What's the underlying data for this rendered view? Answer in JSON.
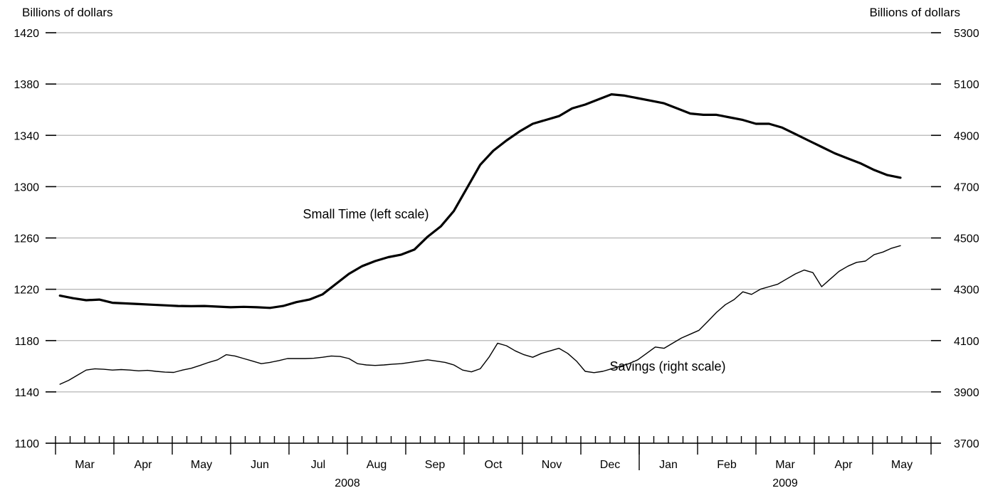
{
  "chart_data": {
    "type": "line",
    "left_axis": {
      "label": "Billions of dollars",
      "ylim": [
        1100,
        1420
      ],
      "ticks": [
        1100,
        1140,
        1180,
        1220,
        1260,
        1300,
        1340,
        1380,
        1420
      ]
    },
    "right_axis": {
      "label": "Billions of dollars",
      "ylim": [
        3700,
        5300
      ],
      "ticks": [
        3700,
        3900,
        4100,
        4300,
        4500,
        4700,
        4900,
        5100,
        5300
      ]
    },
    "grid": true,
    "x_range": [
      0,
      30
    ],
    "months": [
      {
        "label": "Mar",
        "start": 0
      },
      {
        "label": "Apr",
        "start": 2
      },
      {
        "label": "May",
        "start": 4
      },
      {
        "label": "Jun",
        "start": 6
      },
      {
        "label": "Jul",
        "start": 8
      },
      {
        "label": "Aug",
        "start": 10
      },
      {
        "label": "Sep",
        "start": 12
      },
      {
        "label": "Oct",
        "start": 14
      },
      {
        "label": "Nov",
        "start": 16
      },
      {
        "label": "Dec",
        "start": 18
      },
      {
        "label": "Jan",
        "start": 20
      },
      {
        "label": "Feb",
        "start": 22
      },
      {
        "label": "Mar",
        "start": 24
      },
      {
        "label": "Apr",
        "start": 26
      },
      {
        "label": "May",
        "start": 28
      }
    ],
    "years": [
      {
        "label": "2008",
        "center": 10
      },
      {
        "label": "2009",
        "center": 25
      }
    ],
    "year_divider": 20,
    "series": [
      {
        "name": "Small Time (left scale)",
        "axis": "left",
        "stroke_width": 3.2,
        "x": [
          0.15,
          0.6,
          1.05,
          1.5,
          1.95,
          2.4,
          2.85,
          3.3,
          3.75,
          4.2,
          4.65,
          5.1,
          5.55,
          6.0,
          6.45,
          6.9,
          7.35,
          7.8,
          8.25,
          8.7,
          9.15,
          9.6,
          10.05,
          10.5,
          10.95,
          11.4,
          11.85,
          12.3,
          12.75,
          13.2,
          13.65,
          14.1,
          14.55,
          15.0,
          15.45,
          15.9,
          16.35,
          16.8,
          17.25,
          17.7,
          18.15,
          18.6,
          19.05,
          19.5,
          19.95,
          20.4,
          20.85,
          21.3,
          21.75,
          22.2,
          22.65,
          23.1,
          23.55,
          24.0,
          24.45,
          24.9,
          25.35,
          25.8,
          26.25,
          26.7,
          27.15,
          27.6,
          28.05,
          28.5,
          28.95
        ],
        "y": [
          1215,
          1213,
          1211.5,
          1212,
          1209.5,
          1209,
          1208.5,
          1208,
          1207.5,
          1207,
          1206.8,
          1207,
          1206.5,
          1206,
          1206.3,
          1206,
          1205.5,
          1207,
          1210,
          1212,
          1216,
          1224,
          1232,
          1238,
          1242,
          1245,
          1247,
          1251,
          1261,
          1269,
          1281,
          1299,
          1317,
          1328,
          1336,
          1343,
          1349,
          1352,
          1355,
          1361,
          1364,
          1368,
          1372,
          1371,
          1369,
          1367,
          1365,
          1361,
          1357,
          1356,
          1356,
          1354,
          1352,
          1349,
          1349,
          1346,
          1341,
          1336,
          1331,
          1326,
          1322,
          1318,
          1313,
          1309,
          1307
        ]
      },
      {
        "name": "Savings (right scale)",
        "axis": "right",
        "stroke_width": 1.4,
        "x": [
          0.15,
          0.45,
          0.75,
          1.05,
          1.35,
          1.65,
          1.95,
          2.25,
          2.55,
          2.85,
          3.15,
          3.45,
          3.75,
          4.05,
          4.35,
          4.65,
          4.95,
          5.25,
          5.55,
          5.85,
          6.15,
          6.45,
          6.75,
          7.05,
          7.35,
          7.65,
          7.95,
          8.25,
          8.55,
          8.85,
          9.15,
          9.45,
          9.75,
          10.05,
          10.35,
          10.65,
          10.95,
          11.25,
          11.55,
          11.85,
          12.15,
          12.45,
          12.75,
          13.05,
          13.35,
          13.65,
          13.95,
          14.25,
          14.55,
          14.85,
          15.15,
          15.45,
          15.75,
          16.05,
          16.35,
          16.65,
          16.95,
          17.25,
          17.55,
          17.85,
          18.15,
          18.45,
          18.75,
          19.05,
          19.35,
          19.65,
          19.95,
          20.25,
          20.55,
          20.85,
          21.15,
          21.45,
          21.75,
          22.05,
          22.35,
          22.65,
          22.95,
          23.25,
          23.55,
          23.85,
          24.15,
          24.45,
          24.75,
          25.05,
          25.35,
          25.65,
          25.95,
          26.25,
          26.55,
          26.85,
          27.15,
          27.45,
          27.75,
          28.05,
          28.35,
          28.65,
          28.95
        ],
        "y": [
          3930,
          3945,
          3965,
          3985,
          3990,
          3988,
          3985,
          3987,
          3985,
          3982,
          3984,
          3980,
          3977,
          3976,
          3985,
          3992,
          4003,
          4015,
          4025,
          4045,
          4040,
          4030,
          4020,
          4010,
          4015,
          4022,
          4030,
          4030,
          4030,
          4031,
          4035,
          4040,
          4038,
          4030,
          4010,
          4005,
          4003,
          4005,
          4008,
          4010,
          4015,
          4020,
          4025,
          4020,
          4015,
          4005,
          3985,
          3978,
          3990,
          4035,
          4090,
          4080,
          4060,
          4045,
          4035,
          4050,
          4060,
          4070,
          4050,
          4020,
          3980,
          3975,
          3980,
          3990,
          4000,
          4010,
          4025,
          4050,
          4075,
          4070,
          4090,
          4110,
          4125,
          4140,
          4175,
          4210,
          4240,
          4260,
          4290,
          4280,
          4300,
          4310,
          4320,
          4340,
          4360,
          4375,
          4365,
          4310,
          4340,
          4370,
          4390,
          4405,
          4410,
          4435,
          4445,
          4460,
          4470
        ]
      }
    ],
    "annotations": [
      {
        "text": "Small Time (left scale)",
        "series": 0
      },
      {
        "text": "Savings (right scale)",
        "series": 1
      }
    ]
  }
}
